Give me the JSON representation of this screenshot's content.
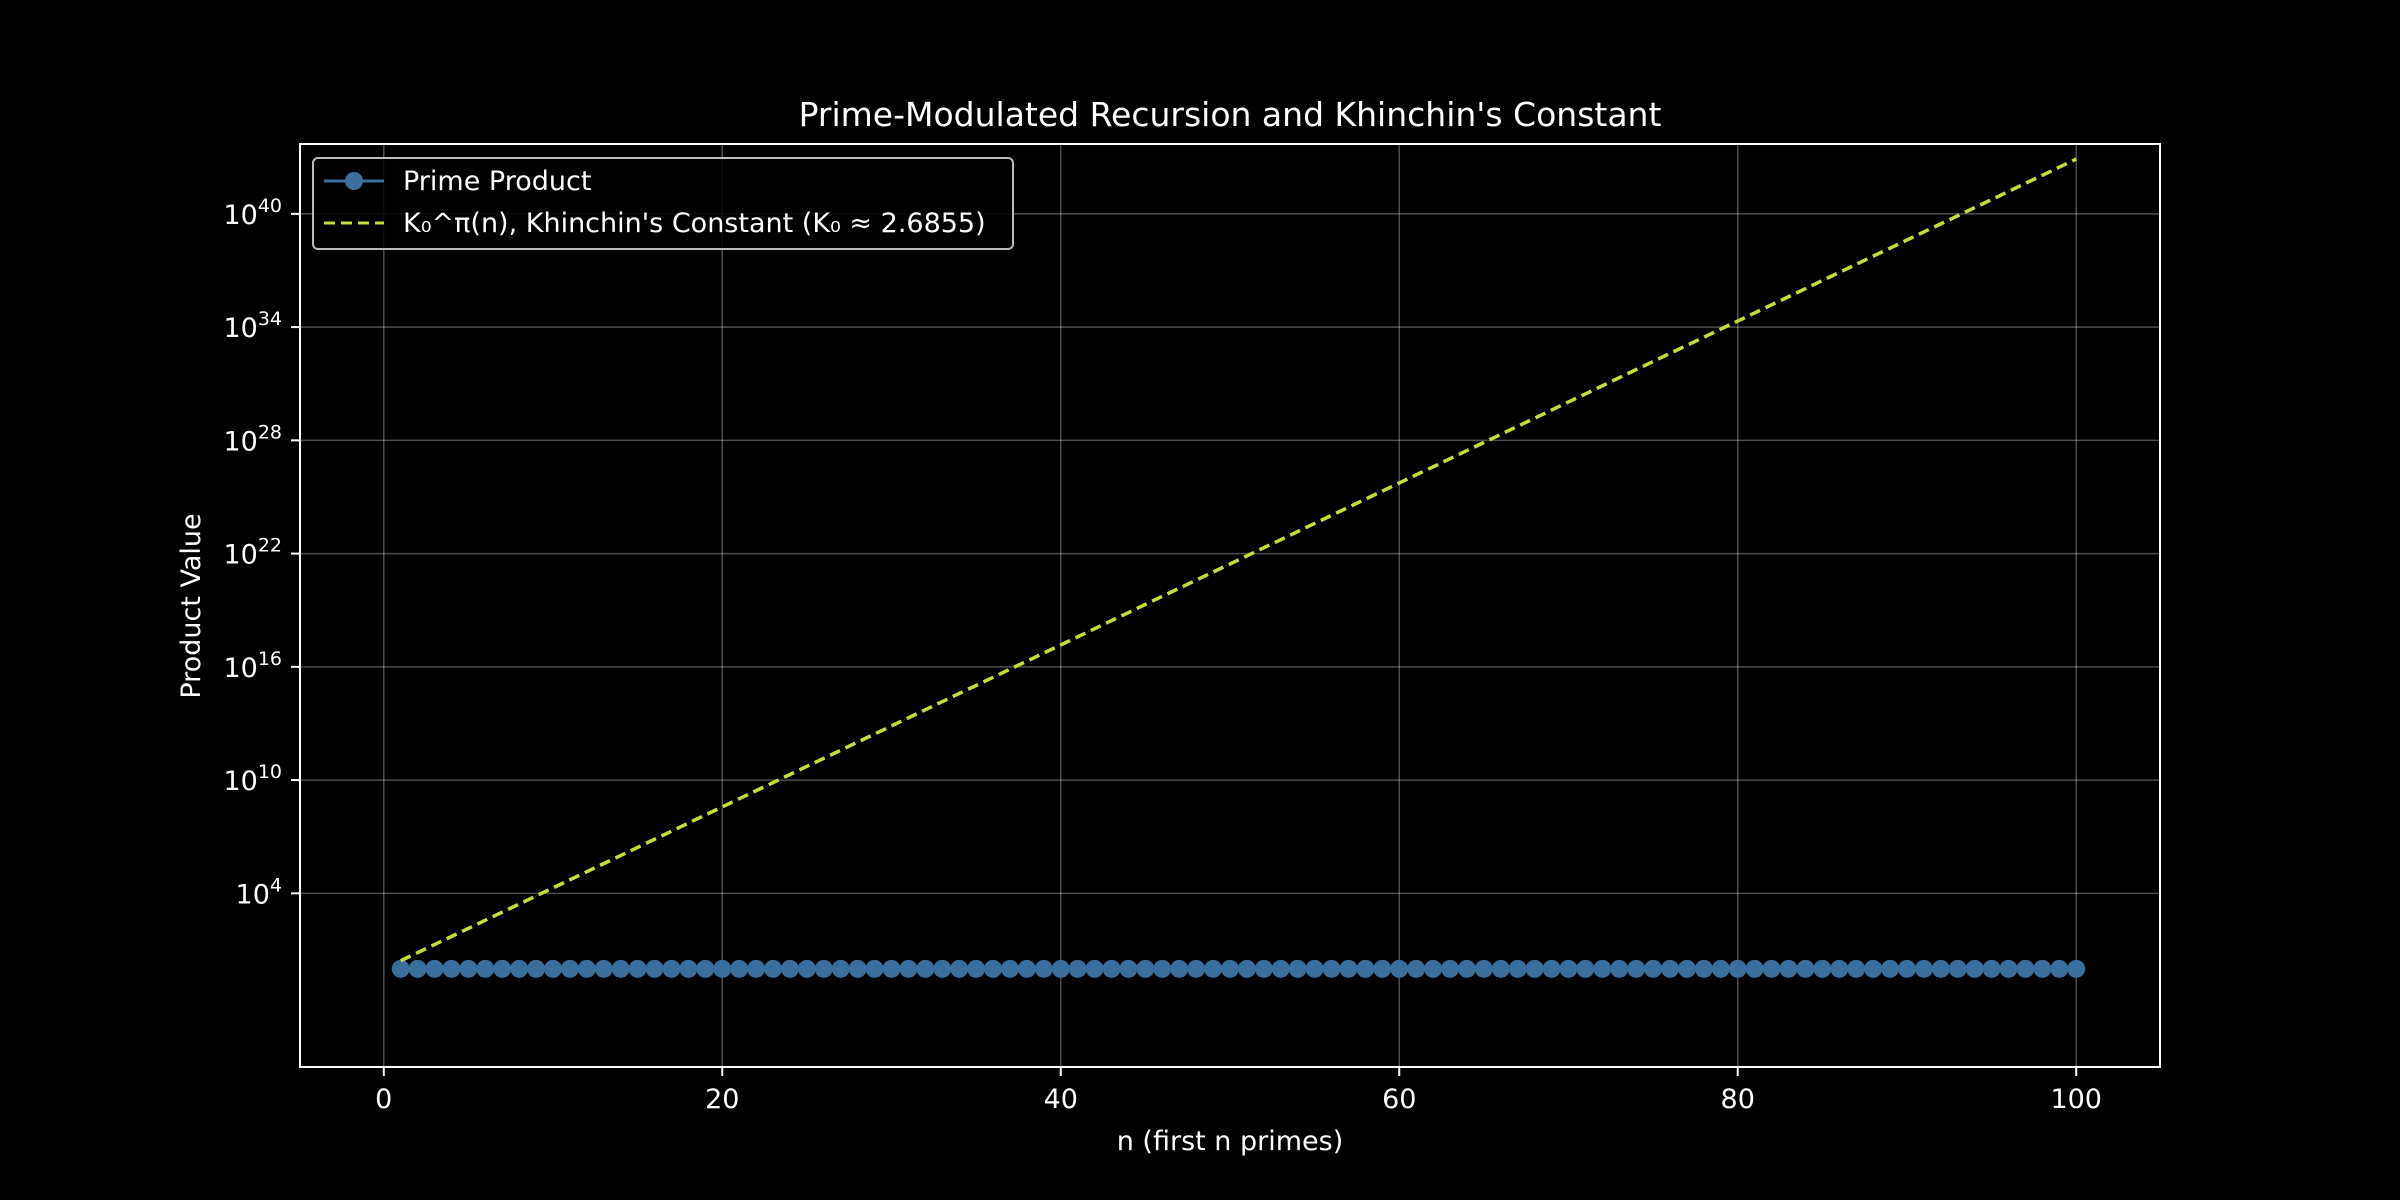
{
  "chart_data": {
    "type": "line",
    "title": "Prime-Modulated Recursion and Khinchin's Constant",
    "xlabel": "n (first n primes)",
    "ylabel": "Product Value",
    "xlim": [
      -4.95,
      104.95
    ],
    "ylim_log10": [
      -5.2,
      43.7
    ],
    "y_scale": "log",
    "x_ticks": [
      0,
      20,
      40,
      60,
      80,
      100
    ],
    "y_ticks": [
      {
        "base": "10",
        "exp": "4",
        "log10": 4
      },
      {
        "base": "10",
        "exp": "10",
        "log10": 10
      },
      {
        "base": "10",
        "exp": "16",
        "log10": 16
      },
      {
        "base": "10",
        "exp": "22",
        "log10": 22
      },
      {
        "base": "10",
        "exp": "28",
        "log10": 28
      },
      {
        "base": "10",
        "exp": "34",
        "log10": 34
      },
      {
        "base": "10",
        "exp": "40",
        "log10": 40
      }
    ],
    "grid": true,
    "legend_position": "top-left",
    "series": [
      {
        "name": "Prime Product",
        "style": "solid-line-with-circle-markers",
        "color": "#3a6e9c",
        "x_range": [
          1,
          100
        ],
        "value": 1,
        "note_values": "n = 1..100, constant value 1"
      },
      {
        "name": "K₀^π(n), Khinchin's Constant (K₀ ≈ 2.6855)",
        "style": "dashed",
        "color": "#c6dc3a",
        "x_range": [
          1,
          100
        ],
        "base": 2.6855
      }
    ]
  }
}
